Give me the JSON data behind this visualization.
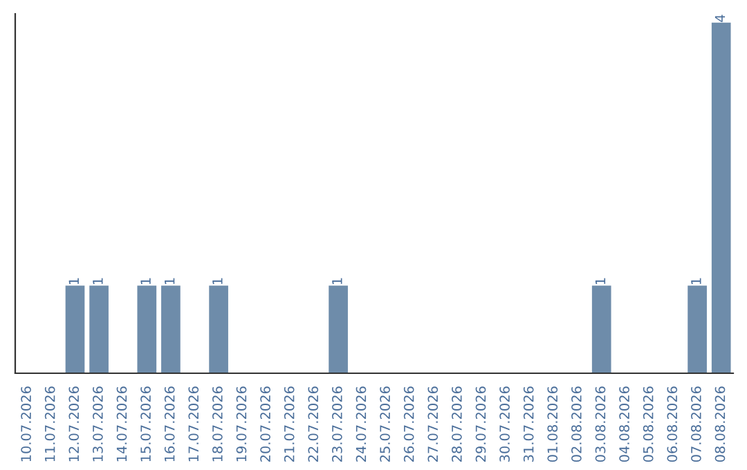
{
  "chart_data": {
    "type": "bar",
    "categories": [
      "10.07.2026",
      "11.07.2026",
      "12.07.2026",
      "13.07.2026",
      "14.07.2026",
      "15.07.2026",
      "16.07.2026",
      "17.07.2026",
      "18.07.2026",
      "19.07.2026",
      "20.07.2026",
      "21.07.2026",
      "22.07.2026",
      "23.07.2026",
      "24.07.2026",
      "25.07.2026",
      "26.07.2026",
      "27.07.2026",
      "28.07.2026",
      "29.07.2026",
      "30.07.2026",
      "31.07.2026",
      "01.08.2026",
      "02.08.2026",
      "03.08.2026",
      "04.08.2026",
      "05.08.2026",
      "06.08.2026",
      "07.08.2026",
      "08.08.2026"
    ],
    "values": [
      0,
      0,
      1,
      1,
      0,
      1,
      1,
      0,
      1,
      0,
      0,
      0,
      0,
      1,
      0,
      0,
      0,
      0,
      0,
      0,
      0,
      0,
      0,
      0,
      1,
      0,
      0,
      0,
      1,
      4
    ],
    "value_labels": [
      null,
      null,
      "1",
      "1",
      null,
      "1",
      "1",
      null,
      "1",
      null,
      null,
      null,
      null,
      "1",
      null,
      null,
      null,
      null,
      null,
      null,
      null,
      null,
      null,
      null,
      "1",
      null,
      null,
      null,
      "1",
      "4"
    ],
    "color": "#6e8caa",
    "ylim": [
      0,
      4.1
    ],
    "tick_labels": "x",
    "grid": false
  }
}
